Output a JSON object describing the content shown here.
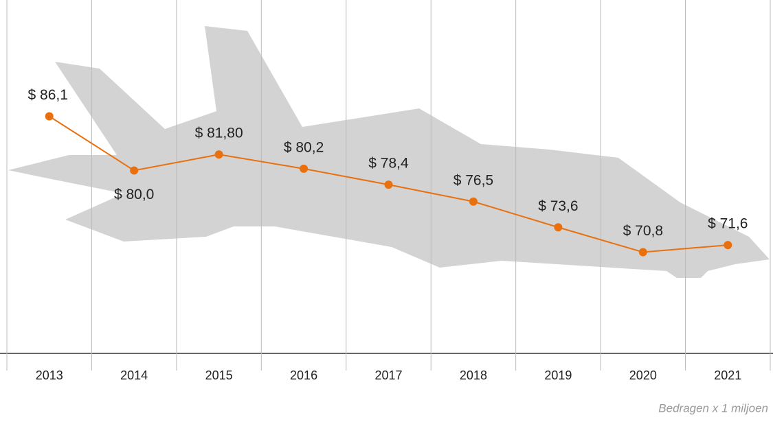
{
  "chart_data": {
    "type": "line",
    "categories": [
      "2013",
      "2014",
      "2015",
      "2016",
      "2017",
      "2018",
      "2019",
      "2020",
      "2021"
    ],
    "values": [
      86.1,
      80.0,
      81.8,
      80.2,
      78.4,
      76.5,
      73.6,
      70.8,
      71.6
    ],
    "value_labels": [
      "$ 86,1",
      "$ 80,0",
      "$ 81,80",
      "$ 80,2",
      "$ 78,4",
      "$ 76,5",
      "$ 73,6",
      "$ 70,8",
      "$ 71,6"
    ],
    "color": "#e8700f",
    "ylim": [
      59.4,
      99.2
    ],
    "note": "Bedragen x 1 miljoen"
  }
}
